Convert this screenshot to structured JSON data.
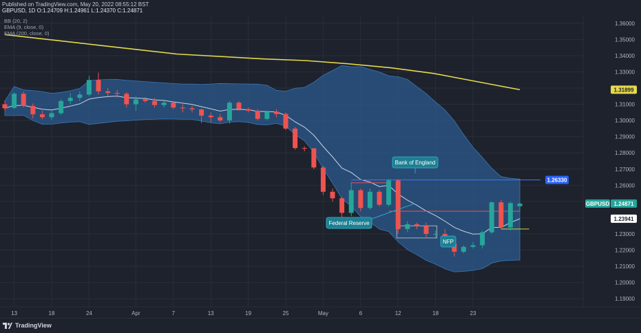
{
  "header": {
    "published": "Published on TradingView.com, May 20, 2022 08:55:12 BST",
    "ohlc": "GBPUSD, 1D  O:1.24709 H:1.24961 L:1.24370 C:1.24871"
  },
  "legend": [
    "BB (20, 2)",
    "EMA (9, close, 0)",
    "EMA (200, close, 0)"
  ],
  "footer": {
    "brand": "TradingView"
  },
  "colors": {
    "background": "#1e222d",
    "up": "#26a69a",
    "down": "#ef5350",
    "bands_fill": "#2b5a8c",
    "ema9": "#c8d4e6",
    "ema200": "#e4d94a",
    "accent_blue": "#2962ff"
  },
  "chart_data": {
    "type": "candlestick",
    "symbol": "GBPUSD",
    "timeframe": "1D",
    "y_axis": {
      "ticks": [
        1.19,
        1.2,
        1.21,
        1.22,
        1.23,
        1.24,
        1.25,
        1.26,
        1.27,
        1.28,
        1.29,
        1.3,
        1.31,
        1.32,
        1.33,
        1.34,
        1.35,
        1.36
      ],
      "tick_labels": [
        "1.19000",
        "1.20000",
        "1.21000",
        "1.22000",
        "1.23000",
        "1.24000",
        "1.25000",
        "1.26000",
        "1.27000",
        "1.28000",
        "1.29000",
        "1.30000",
        "1.31000",
        "1.32000",
        "1.33000",
        "1.34000",
        "1.35000",
        "1.36000"
      ],
      "range": [
        1.185,
        1.365
      ]
    },
    "x_axis": {
      "labels": [
        {
          "label": "13",
          "index": 1
        },
        {
          "label": "18",
          "index": 5
        },
        {
          "label": "24",
          "index": 9
        },
        {
          "label": "Apr",
          "index": 14
        },
        {
          "label": "7",
          "index": 18
        },
        {
          "label": "13",
          "index": 22
        },
        {
          "label": "19",
          "index": 26
        },
        {
          "label": "25",
          "index": 30
        },
        {
          "label": "May",
          "index": 34
        },
        {
          "label": "6",
          "index": 38
        },
        {
          "label": "12",
          "index": 42
        },
        {
          "label": "18",
          "index": 46
        },
        {
          "label": "23",
          "index": 50
        }
      ]
    },
    "candles": [
      [
        1.31,
        1.3122,
        1.306,
        1.3075
      ],
      [
        1.3078,
        1.3175,
        1.307,
        1.3165
      ],
      [
        1.3165,
        1.3178,
        1.308,
        1.309
      ],
      [
        1.309,
        1.3105,
        1.3012,
        1.3038
      ],
      [
        1.3038,
        1.306,
        1.3008,
        1.302
      ],
      [
        1.302,
        1.306,
        1.3005,
        1.3045
      ],
      [
        1.3045,
        1.313,
        1.3035,
        1.312
      ],
      [
        1.312,
        1.317,
        1.31,
        1.314
      ],
      [
        1.314,
        1.318,
        1.312,
        1.316
      ],
      [
        1.316,
        1.3275,
        1.315,
        1.325
      ],
      [
        1.325,
        1.3295,
        1.316,
        1.318
      ],
      [
        1.318,
        1.32,
        1.315,
        1.317
      ],
      [
        1.317,
        1.319,
        1.314,
        1.3165
      ],
      [
        1.3165,
        1.3175,
        1.308,
        1.31
      ],
      [
        1.31,
        1.315,
        1.306,
        1.313
      ],
      [
        1.313,
        1.3145,
        1.311,
        1.312
      ],
      [
        1.312,
        1.314,
        1.308,
        1.3095
      ],
      [
        1.3095,
        1.312,
        1.308,
        1.311
      ],
      [
        1.311,
        1.312,
        1.307,
        1.308
      ],
      [
        1.308,
        1.31,
        1.305,
        1.3075
      ],
      [
        1.3075,
        1.309,
        1.305,
        1.3068
      ],
      [
        1.3068,
        1.3075,
        1.2985,
        1.303
      ],
      [
        1.303,
        1.305,
        1.299,
        1.302
      ],
      [
        1.302,
        1.304,
        1.299,
        1.3
      ],
      [
        1.3,
        1.312,
        1.298,
        1.311
      ],
      [
        1.311,
        1.312,
        1.306,
        1.307
      ],
      [
        1.307,
        1.308,
        1.305,
        1.306
      ],
      [
        1.306,
        1.307,
        1.3,
        1.301
      ],
      [
        1.301,
        1.306,
        1.3,
        1.3055
      ],
      [
        1.3055,
        1.307,
        1.302,
        1.304
      ],
      [
        1.304,
        1.305,
        1.294,
        1.295
      ],
      [
        1.295,
        1.296,
        1.282,
        1.283
      ],
      [
        1.283,
        1.284,
        1.281,
        1.2828
      ],
      [
        1.2828,
        1.283,
        1.27,
        1.271
      ],
      [
        1.271,
        1.272,
        1.254,
        1.256
      ],
      [
        1.256,
        1.258,
        1.25,
        1.252
      ],
      [
        1.252,
        1.253,
        1.24,
        1.243
      ],
      [
        1.243,
        1.262,
        1.241,
        1.257
      ],
      [
        1.257,
        1.258,
        1.244,
        1.246
      ],
      [
        1.246,
        1.258,
        1.245,
        1.256
      ],
      [
        1.256,
        1.257,
        1.247,
        1.248
      ],
      [
        1.248,
        1.264,
        1.247,
        1.263
      ],
      [
        1.263,
        1.264,
        1.23,
        1.233
      ],
      [
        1.233,
        1.238,
        1.231,
        1.236
      ],
      [
        1.236,
        1.237,
        1.233,
        1.235
      ],
      [
        1.235,
        1.237,
        1.228,
        1.23
      ],
      [
        1.23,
        1.232,
        1.227,
        1.23
      ],
      [
        1.23,
        1.233,
        1.223,
        1.224
      ],
      [
        1.224,
        1.225,
        1.216,
        1.219
      ],
      [
        1.219,
        1.223,
        1.218,
        1.222
      ],
      [
        1.222,
        1.225,
        1.221,
        1.223
      ],
      [
        1.223,
        1.232,
        1.221,
        1.231
      ],
      [
        1.231,
        1.25,
        1.23,
        1.2495
      ],
      [
        1.2495,
        1.251,
        1.233,
        1.234
      ],
      [
        1.234,
        1.25,
        1.232,
        1.249
      ],
      [
        1.2471,
        1.2496,
        1.2437,
        1.2487
      ]
    ],
    "ema200": [
      [
        0,
        1.353
      ],
      [
        20,
        1.347
      ],
      [
        40,
        1.341
      ],
      [
        60,
        1.338
      ],
      [
        70,
        1.337
      ],
      [
        80,
        1.335
      ],
      [
        90,
        1.3325
      ],
      [
        100,
        1.329
      ],
      [
        110,
        1.324
      ],
      [
        120,
        1.319
      ]
    ],
    "price_labels": {
      "ema200": "1.31899",
      "last": "1.24871",
      "last_symbol": "GBPUSD",
      "ema9": "1.23941",
      "bank_level": "1.26330"
    },
    "annotations": [
      {
        "text": "Bank of England",
        "near_index": 41
      },
      {
        "text": "Federal Reserve",
        "near_index": 36
      },
      {
        "text": "NFP",
        "near_index": 45
      }
    ],
    "grid": true
  }
}
